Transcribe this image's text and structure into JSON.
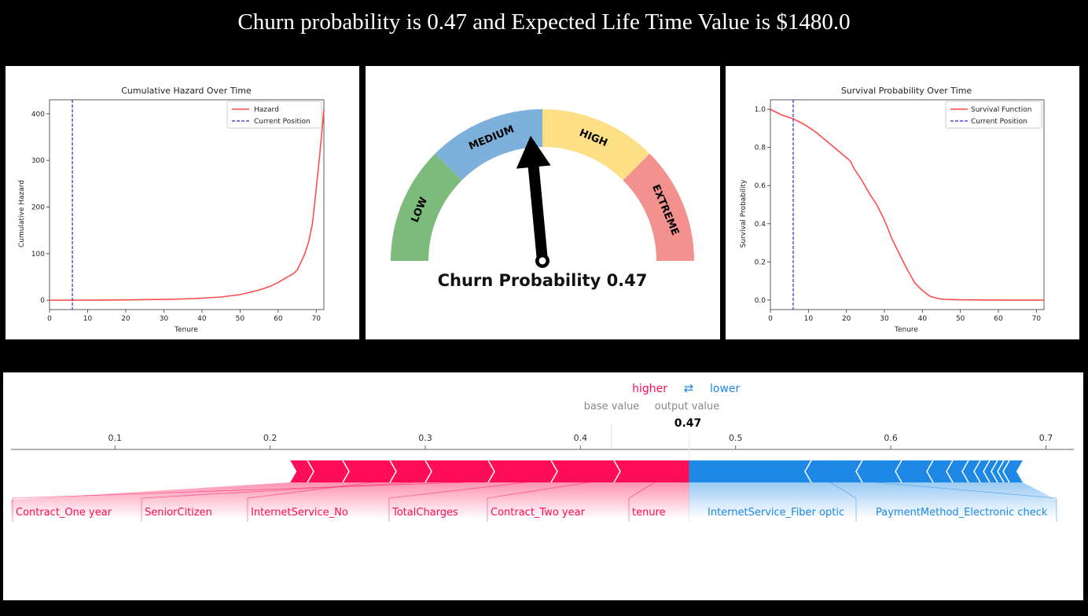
{
  "headline": "Churn probability is 0.47 and Expected Life Time Value is $1480.0",
  "colors": {
    "hazard_line": "#ff4d4d",
    "position_line": "#2b2bd6",
    "higher": "#ff0d57",
    "lower": "#1e88e5",
    "gauge_low": "#7dbb7d",
    "gauge_medium": "#7eb0dc",
    "gauge_high": "#fde086",
    "gauge_extreme": "#f3918f"
  },
  "chart_data": [
    {
      "type": "line",
      "title": "Cumulative Hazard Over Time",
      "xlabel": "Tenure",
      "ylabel": "Cumulative Hazard",
      "xlim": [
        0,
        72
      ],
      "ylim": [
        -20,
        430
      ],
      "xticks": [
        0,
        10,
        20,
        30,
        40,
        50,
        60,
        70
      ],
      "yticks": [
        0,
        100,
        200,
        300,
        400
      ],
      "legend_position": "top-right",
      "series": [
        {
          "name": "Hazard",
          "x": [
            0,
            10,
            20,
            30,
            35,
            40,
            45,
            50,
            55,
            58,
            60,
            62,
            64,
            65,
            66,
            67,
            68,
            69,
            70,
            71,
            72
          ],
          "y": [
            0,
            0.3,
            0.8,
            1.8,
            2.8,
            4.5,
            7,
            12,
            22,
            30,
            38,
            48,
            57,
            65,
            82,
            100,
            125,
            165,
            240,
            320,
            410
          ]
        },
        {
          "name": "Current Position",
          "vertical_x": 6
        }
      ]
    },
    {
      "type": "gauge",
      "segments": [
        "LOW",
        "MEDIUM",
        "HIGH",
        "EXTREME"
      ],
      "value": 0.47,
      "caption": "Churn Probability 0.47"
    },
    {
      "type": "line",
      "title": "Survival Probability Over Time",
      "xlabel": "Tenure",
      "ylabel": "Survival Probability",
      "xlim": [
        0,
        72
      ],
      "ylim": [
        -0.05,
        1.05
      ],
      "xticks": [
        0,
        10,
        20,
        30,
        40,
        50,
        60,
        70
      ],
      "yticks": [
        "0.0",
        "0.2",
        "0.4",
        "0.6",
        "0.8",
        "1.0"
      ],
      "legend_position": "top-right",
      "series": [
        {
          "name": "Survival Function",
          "x": [
            0,
            3,
            6,
            9,
            12,
            15,
            18,
            21,
            22,
            24,
            26,
            28,
            30,
            32,
            34,
            36,
            38,
            40,
            42,
            44,
            46,
            50,
            60,
            72
          ],
          "y": [
            1.0,
            0.97,
            0.95,
            0.92,
            0.88,
            0.83,
            0.78,
            0.73,
            0.69,
            0.63,
            0.56,
            0.5,
            0.42,
            0.32,
            0.24,
            0.16,
            0.09,
            0.05,
            0.02,
            0.008,
            0.003,
            0.001,
            0.0,
            0.0
          ]
        },
        {
          "name": "Current Position",
          "vertical_x": 6
        }
      ]
    },
    {
      "type": "force",
      "higher_label": "higher",
      "lower_label": "lower",
      "swap_glyph": "⇄",
      "base_value_label": "base value",
      "output_value_label": "output value",
      "output_value": 0.47,
      "output_value_text": "0.47",
      "base_value": 0.42,
      "axis_range": [
        0.033,
        0.718
      ],
      "ticks": [
        "0.1",
        "0.2",
        "0.3",
        "0.4",
        "0.5",
        "0.6",
        "0.7"
      ],
      "red_start": 0.213,
      "blue_end": 0.685,
      "red_features": [
        "Contract_One year",
        "SeniorCitizen",
        "InternetService_No",
        "TotalCharges",
        "Contract_Two year",
        "tenure"
      ],
      "blue_features": [
        "InternetService_Fiber optic",
        "PaymentMethod_Electronic check"
      ]
    }
  ]
}
